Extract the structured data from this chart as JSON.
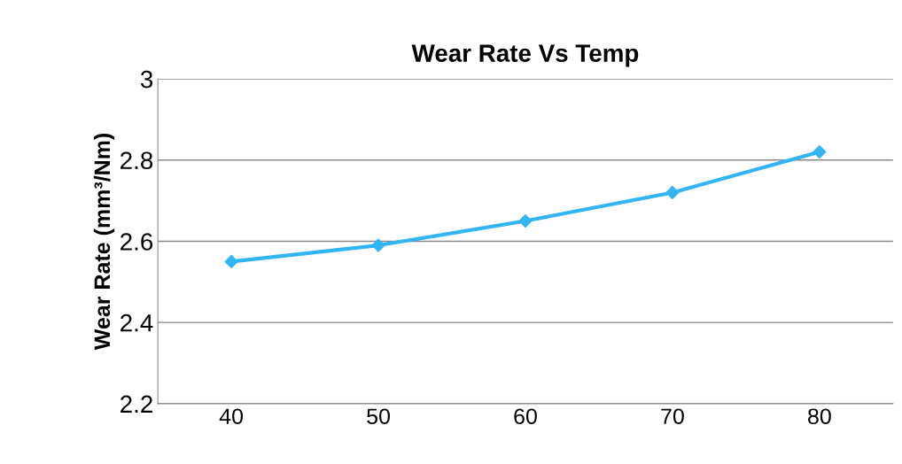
{
  "chart_data": {
    "type": "line",
    "title": "Wear Rate Vs Temp",
    "ylabel": "Wear Rate (mm³/Nm)",
    "categories": [
      "40",
      "50",
      "60",
      "70",
      "80"
    ],
    "series": [
      {
        "color": "#33b5f5",
        "values": [
          2.55,
          2.59,
          2.65,
          2.72,
          2.82
        ]
      }
    ],
    "ylim": [
      2.2,
      3
    ],
    "yticks": [
      2.2,
      2.4,
      2.6,
      2.8,
      3
    ],
    "grid": "y",
    "marker": "diamond",
    "line_style": "solid"
  }
}
